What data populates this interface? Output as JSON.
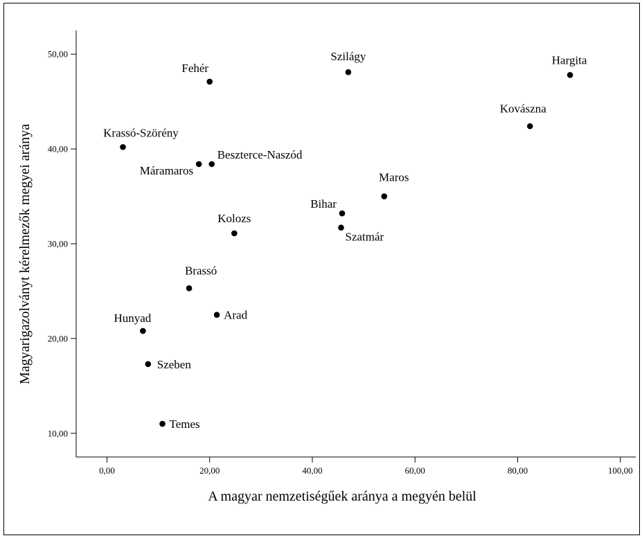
{
  "chart_data": {
    "type": "scatter",
    "xlabel": "A magyar nemzetiségűek aránya a megyén belül",
    "ylabel": "Magyarigazolványt kérelmezők megyei aránya",
    "xlim": [
      -6,
      103
    ],
    "ylim": [
      7.5,
      52.5
    ],
    "xticks": [
      "0,00",
      "20,00",
      "40,00",
      "60,00",
      "80,00",
      "100,00"
    ],
    "yticks": [
      "10,00",
      "20,00",
      "30,00",
      "40,00",
      "50,00"
    ],
    "grid": false,
    "points": [
      {
        "label": "Fehér",
        "x": 20.0,
        "y": 47.1
      },
      {
        "label": "Szilágy",
        "x": 47.0,
        "y": 48.1
      },
      {
        "label": "Hargita",
        "x": 90.2,
        "y": 47.8
      },
      {
        "label": "Kovászna",
        "x": 82.4,
        "y": 42.4
      },
      {
        "label": "Krassó-Szörény",
        "x": 3.1,
        "y": 40.2
      },
      {
        "label": "Beszterce-Naszód",
        "x": 20.4,
        "y": 38.4
      },
      {
        "label": "Máramaros",
        "x": 17.9,
        "y": 38.4
      },
      {
        "label": "Maros",
        "x": 54.0,
        "y": 35.0
      },
      {
        "label": "Bihar",
        "x": 45.8,
        "y": 33.2
      },
      {
        "label": "Szatmár",
        "x": 45.6,
        "y": 31.7
      },
      {
        "label": "Kolozs",
        "x": 24.8,
        "y": 31.1
      },
      {
        "label": "Brassó",
        "x": 16.0,
        "y": 25.3
      },
      {
        "label": "Arad",
        "x": 21.4,
        "y": 22.5
      },
      {
        "label": "Hunyad",
        "x": 7.0,
        "y": 20.8
      },
      {
        "label": "Szeben",
        "x": 8.0,
        "y": 17.3
      },
      {
        "label": "Temes",
        "x": 10.8,
        "y": 11.0
      }
    ]
  }
}
